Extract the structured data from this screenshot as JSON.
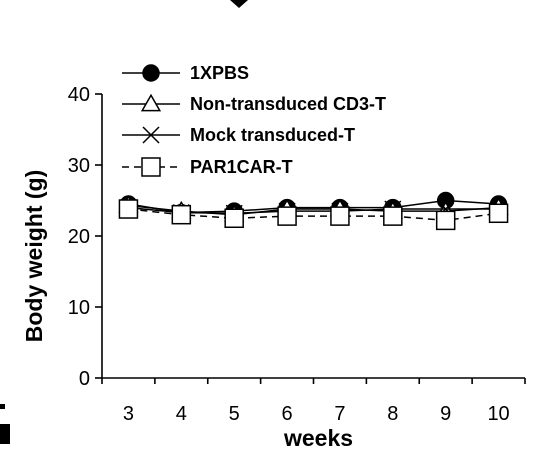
{
  "chart_data": {
    "type": "line",
    "title": "",
    "xlabel": "weeks",
    "ylabel": "Body weight (g)",
    "x": [
      3,
      4,
      5,
      6,
      7,
      8,
      9,
      10
    ],
    "xlim": [
      2.5,
      10.5
    ],
    "ylim": [
      0,
      40
    ],
    "y_ticks": [
      0,
      10,
      20,
      30,
      40
    ],
    "grid": false,
    "legend_position": "top-left",
    "series": [
      {
        "name": "1XPBS",
        "marker": "filled-circle",
        "line": "solid",
        "values": [
          24.5,
          23.3,
          23.5,
          24.0,
          24.0,
          24.0,
          25.0,
          24.5
        ]
      },
      {
        "name": "Non-transduced CD3-T",
        "marker": "open-triangle",
        "line": "solid",
        "values": [
          24.3,
          23.5,
          23.0,
          23.8,
          23.8,
          23.5,
          23.5,
          24.0
        ]
      },
      {
        "name": "Mock transduced-T",
        "marker": "x",
        "line": "solid",
        "values": [
          24.0,
          23.3,
          23.2,
          23.5,
          23.5,
          23.8,
          23.8,
          23.8
        ]
      },
      {
        "name": "PAR1CAR-T",
        "marker": "open-square",
        "line": "dashed",
        "values": [
          23.8,
          23.0,
          22.5,
          22.8,
          22.8,
          22.8,
          22.2,
          23.2
        ]
      }
    ],
    "colors": {
      "stroke": "#000000",
      "marker_fill_open": "#ffffff",
      "marker_fill_solid": "#000000"
    }
  }
}
